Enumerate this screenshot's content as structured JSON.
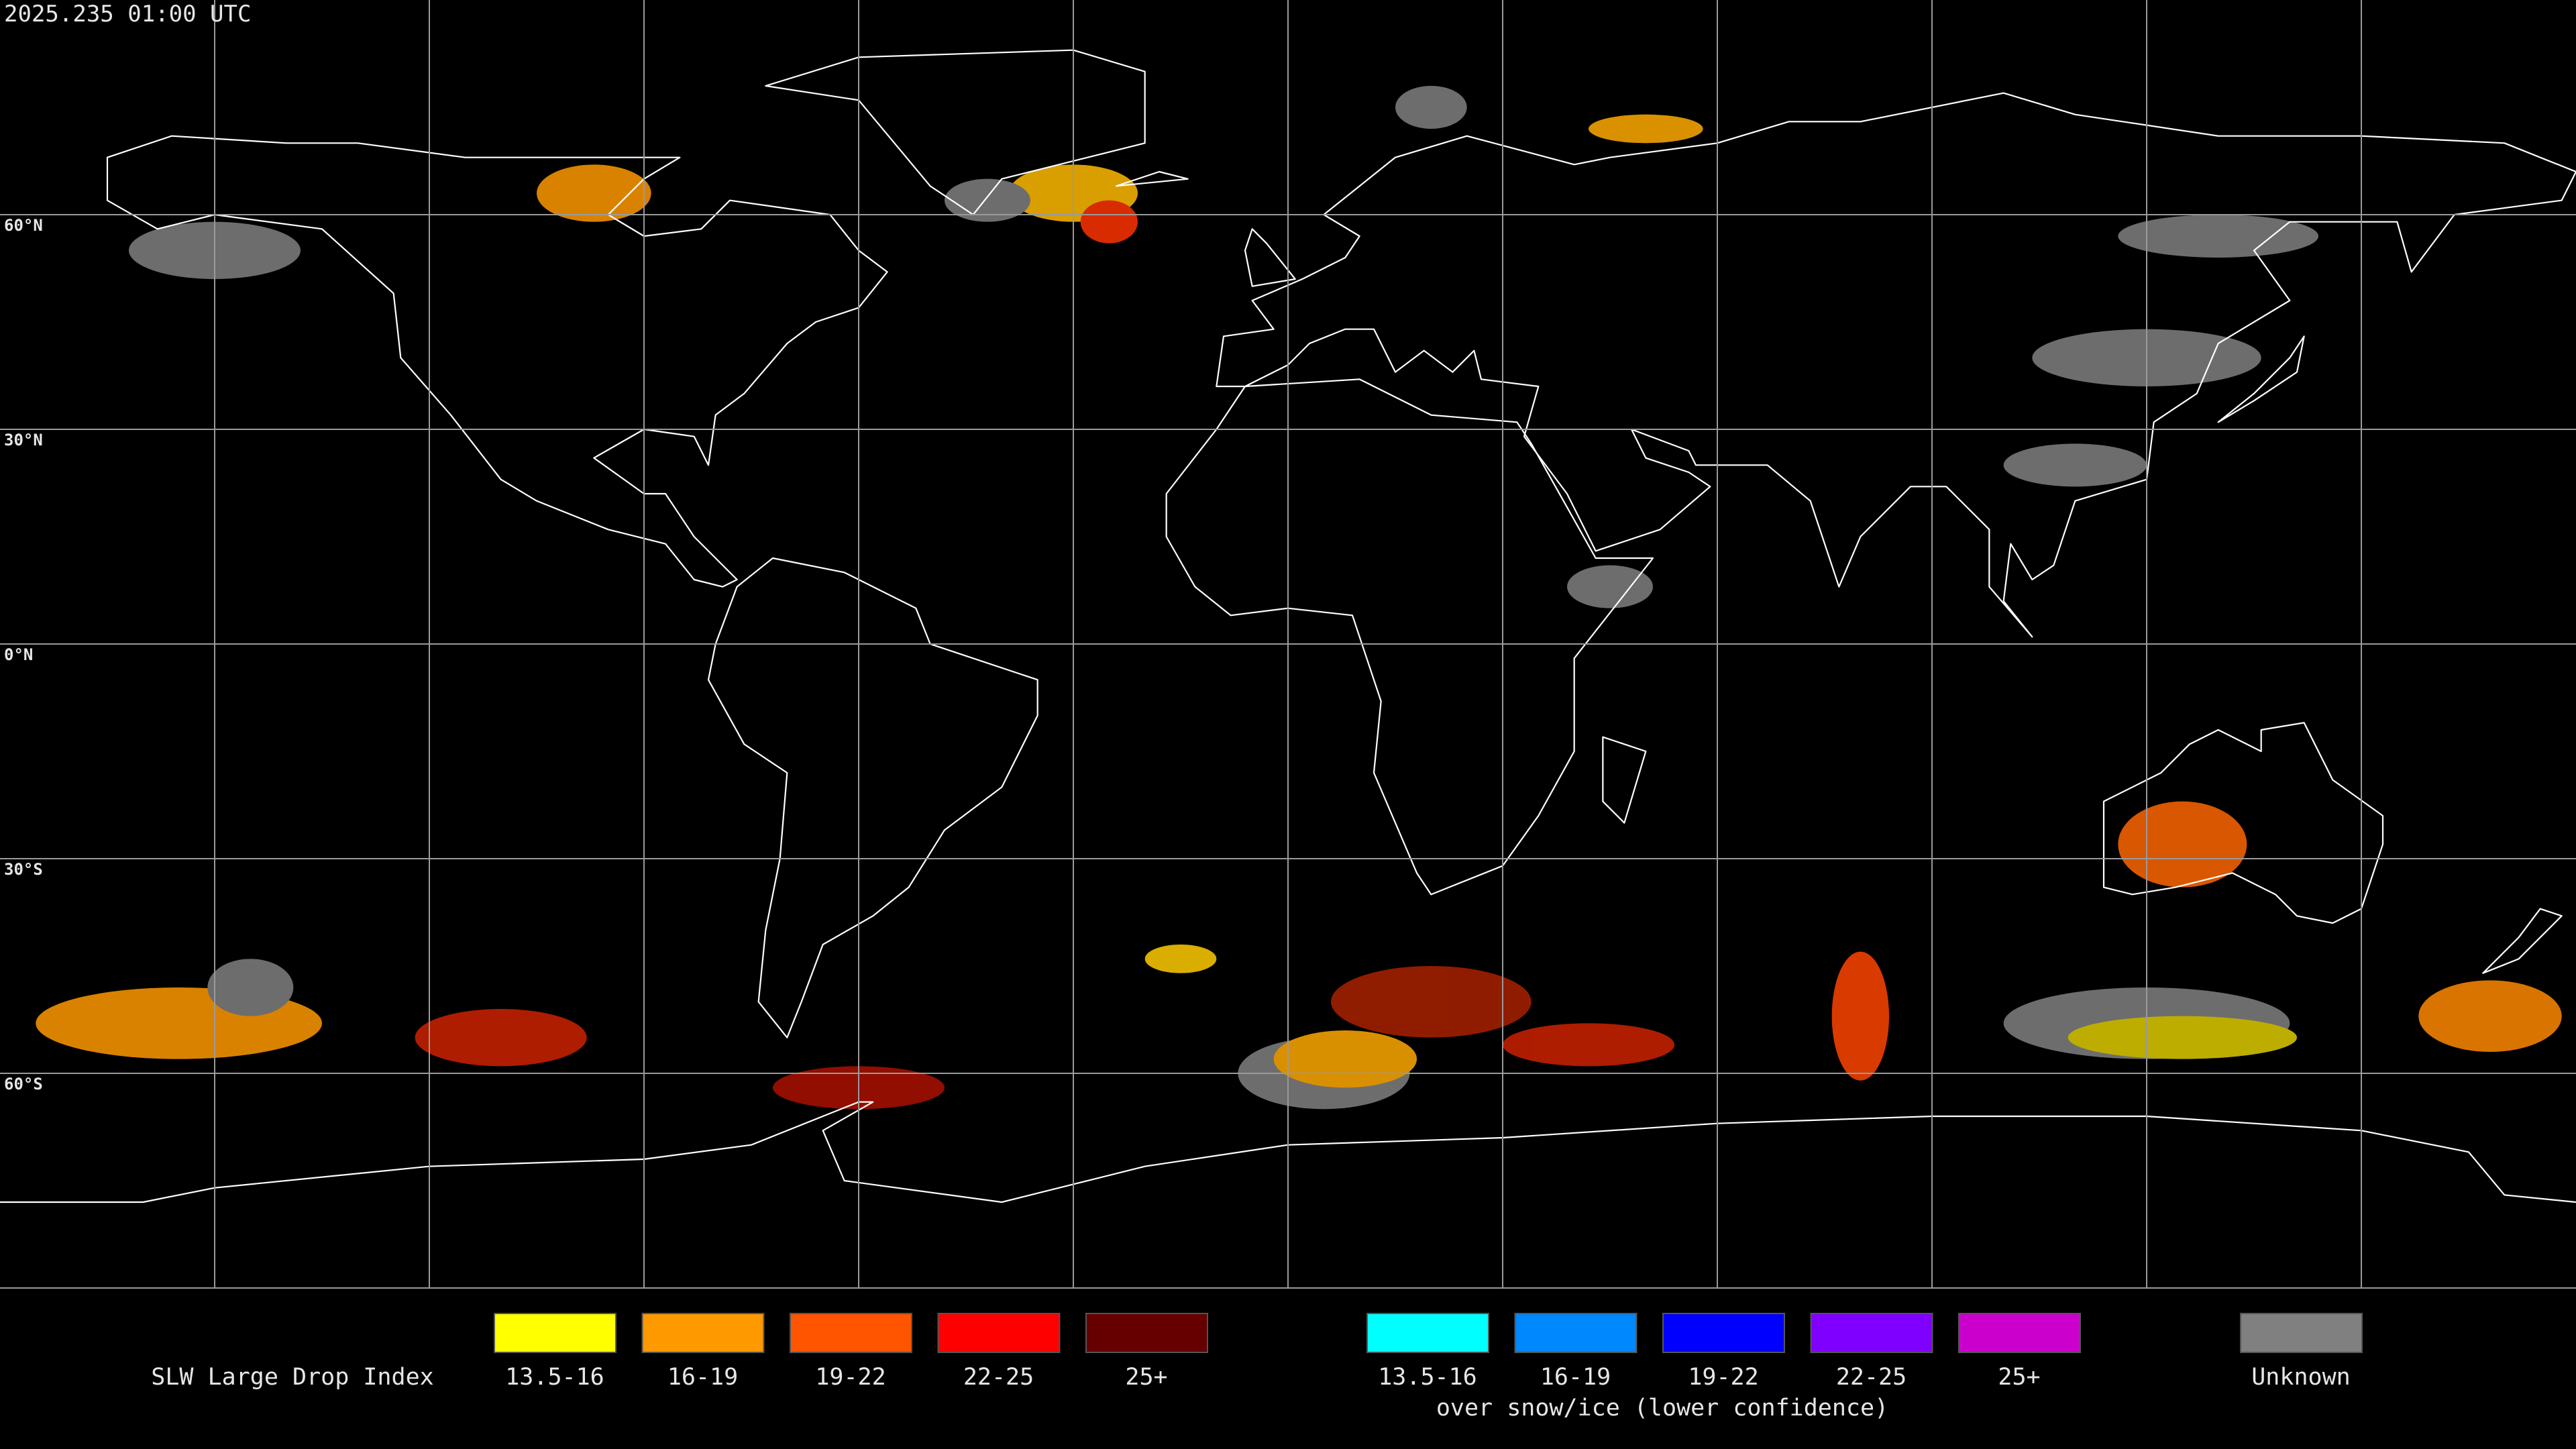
{
  "header": {
    "timestamp": "2025.235 01:00 UTC"
  },
  "map": {
    "latitude_labels": [
      "60°N",
      "30°N",
      "0°N",
      "30°S",
      "60°S"
    ]
  },
  "legend": {
    "title": "SLW Large Drop Index",
    "groups": [
      {
        "items": [
          {
            "label": "13.5-16",
            "color": "#ffff00"
          },
          {
            "label": "16-19",
            "color": "#ff9900"
          },
          {
            "label": "19-22",
            "color": "#ff5500"
          },
          {
            "label": "22-25",
            "color": "#ff0000"
          },
          {
            "label": "25+",
            "color": "#660000"
          }
        ]
      },
      {
        "items": [
          {
            "label": "13.5-16",
            "color": "#00ffff"
          },
          {
            "label": "16-19",
            "color": "#0088ff"
          },
          {
            "label": "19-22",
            "color": "#0000ff"
          },
          {
            "label": "22-25",
            "color": "#8000ff"
          },
          {
            "label": "25+",
            "color": "#cc00cc"
          }
        ],
        "caption": "over snow/ice (lower confidence)"
      }
    ],
    "unknown": {
      "label": "Unknown",
      "color": "#808080"
    }
  }
}
